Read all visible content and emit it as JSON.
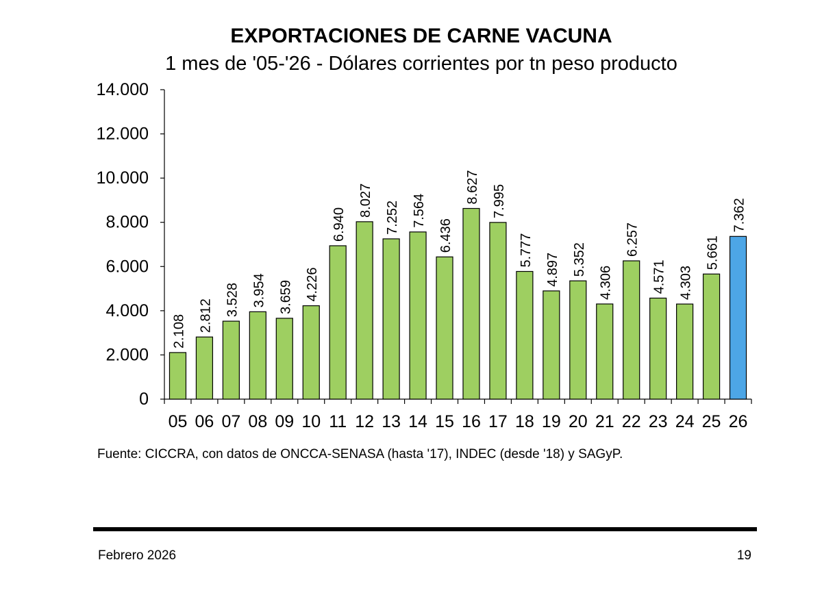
{
  "chart_data": {
    "type": "bar",
    "title": "EXPORTACIONES DE CARNE VACUNA",
    "subtitle": "1 mes de '05-'26 - Dólares corrientes por tn peso producto",
    "xlabel": "",
    "ylabel": "",
    "ylim": [
      0,
      14000
    ],
    "yticks": [
      0,
      2000,
      4000,
      6000,
      8000,
      10000,
      12000,
      14000
    ],
    "ytick_labels": [
      "0",
      "2.000",
      "4.000",
      "6.000",
      "8.000",
      "10.000",
      "12.000",
      "14.000"
    ],
    "categories": [
      "05",
      "06",
      "07",
      "08",
      "09",
      "10",
      "11",
      "12",
      "13",
      "14",
      "15",
      "16",
      "17",
      "18",
      "19",
      "20",
      "21",
      "22",
      "23",
      "24",
      "25",
      "26"
    ],
    "values": [
      2108,
      2812,
      3528,
      3954,
      3659,
      4226,
      6940,
      8027,
      7252,
      7564,
      6436,
      8627,
      7995,
      5777,
      4897,
      5352,
      4306,
      6257,
      4571,
      4303,
      5661,
      7362
    ],
    "data_labels": [
      "2.108",
      "2.812",
      "3.528",
      "3.954",
      "3.659",
      "4.226",
      "6.940",
      "8.027",
      "7.252",
      "7.564",
      "6.436",
      "8.627",
      "7.995",
      "5.777",
      "4.897",
      "5.352",
      "4.306",
      "6.257",
      "4.571",
      "4.303",
      "5.661",
      "7.362"
    ],
    "highlight_index": 21,
    "colors": {
      "bar": "#9ecf61",
      "highlight": "#4da6e6",
      "outline": "#000000"
    },
    "grid": false,
    "legend": "none"
  },
  "source": "Fuente: CICCRA, con datos de ONCCA-SENASA (hasta '17), INDEC (desde '18) y SAGyP.",
  "footer": {
    "date": "Febrero 2026",
    "page": "19"
  }
}
